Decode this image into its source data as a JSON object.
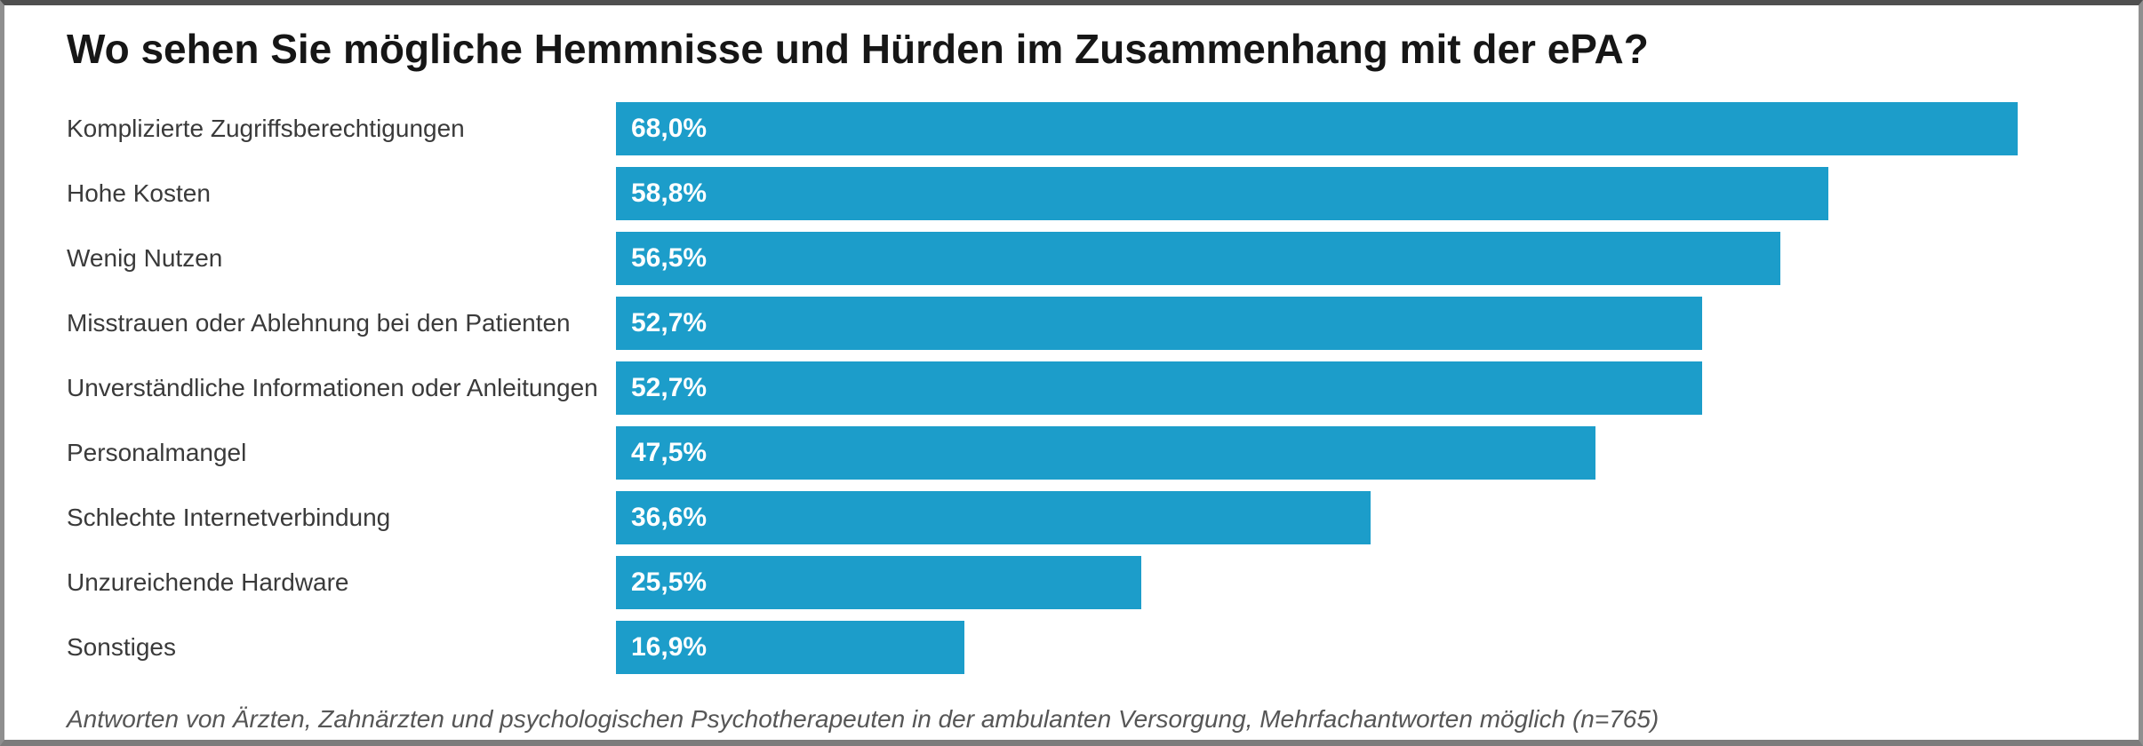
{
  "header": {
    "title": "Wo sehen Sie mögliche Hemmnisse und Hürden im Zusammenhang mit der ePA?"
  },
  "chart_data": {
    "type": "bar",
    "orientation": "horizontal",
    "title": "Wo sehen Sie mögliche Hemmnisse und Hürden im Zusammenhang mit der ePA?",
    "categories": [
      "Komplizierte Zugriffsberechtigungen",
      "Hohe Kosten",
      "Wenig Nutzen",
      "Misstrauen oder Ablehnung bei den Patienten",
      "Unverständliche Informationen oder Anleitungen",
      "Personalmangel",
      "Schlechte Internetverbindung",
      "Unzureichende Hardware",
      "Sonstiges"
    ],
    "values": [
      68.0,
      58.8,
      56.5,
      52.7,
      52.7,
      47.5,
      36.6,
      25.5,
      16.9
    ],
    "value_labels": [
      "68,0%",
      "58,8%",
      "56,5%",
      "52,7%",
      "52,7%",
      "47,5%",
      "36,6%",
      "25,5%",
      "16,9%"
    ],
    "unit": "%",
    "xlabel": "",
    "ylabel": "",
    "xlim": [
      0,
      68
    ],
    "grid": false,
    "legend": false,
    "value_labels_position": "inside-start",
    "colors": {
      "bar": "#1c9dca",
      "bar_value_text": "#ffffff",
      "title": "#161616",
      "category_label": "#3a3a3a",
      "footnote": "#565656",
      "background": "#ffffff"
    }
  },
  "footer": {
    "note": "Antworten von Ärzten, Zahnärzten und psychologischen Psychotherapeuten in der ambulanten Versorgung, Mehrfachantworten möglich (n=765)"
  }
}
